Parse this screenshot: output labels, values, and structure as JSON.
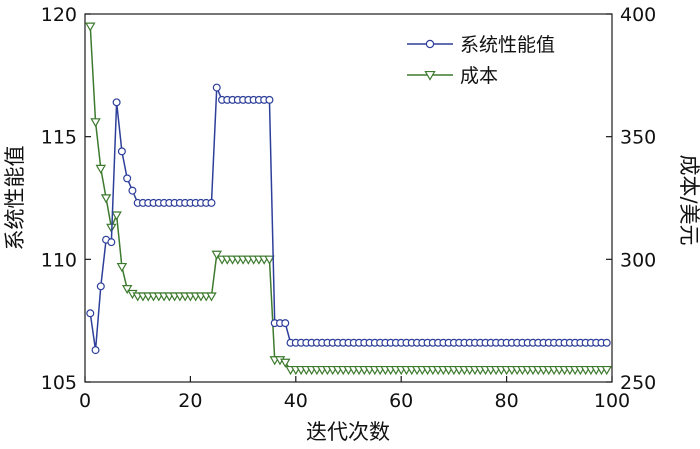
{
  "chart_data": {
    "type": "line",
    "xlabel": "迭代次数",
    "ylabel_left": "系统性能值",
    "ylabel_right": "成本/美元",
    "xlim": [
      0,
      100
    ],
    "ylim_left": [
      105,
      120
    ],
    "ylim_right": [
      250,
      400
    ],
    "x_ticks": [
      "0",
      "20",
      "40",
      "60",
      "80",
      "100"
    ],
    "y_ticks_left": [
      "105",
      "110",
      "115",
      "120"
    ],
    "y_ticks_right": [
      "250",
      "300",
      "350",
      "400"
    ],
    "grid": false,
    "legend_position": "top-right",
    "colors": {
      "performance": "#2e3f9a",
      "cost": "#3d7a2e"
    },
    "series": [
      {
        "name": "系统性能值",
        "axis": "left",
        "marker": "circle",
        "x": [
          1,
          2,
          3,
          4,
          5,
          6,
          7,
          8,
          9,
          10,
          11,
          12,
          13,
          14,
          15,
          16,
          17,
          18,
          19,
          20,
          21,
          22,
          23,
          24,
          25,
          26,
          27,
          28,
          29,
          30,
          31,
          32,
          33,
          34,
          35,
          36,
          37,
          38,
          39,
          40,
          41,
          42,
          43,
          44,
          45,
          46,
          47,
          48,
          49,
          50,
          51,
          52,
          53,
          54,
          55,
          56,
          57,
          58,
          59,
          60,
          61,
          62,
          63,
          64,
          65,
          66,
          67,
          68,
          69,
          70,
          71,
          72,
          73,
          74,
          75,
          76,
          77,
          78,
          79,
          80,
          81,
          82,
          83,
          84,
          85,
          86,
          87,
          88,
          89,
          90,
          91,
          92,
          93,
          94,
          95,
          96,
          97,
          98,
          99
        ],
        "values": [
          107.8,
          106.3,
          108.9,
          110.8,
          110.7,
          116.4,
          114.4,
          113.3,
          112.8,
          112.3,
          112.3,
          112.3,
          112.3,
          112.3,
          112.3,
          112.3,
          112.3,
          112.3,
          112.3,
          112.3,
          112.3,
          112.3,
          112.3,
          112.3,
          117.0,
          116.5,
          116.5,
          116.5,
          116.5,
          116.5,
          116.5,
          116.5,
          116.5,
          116.5,
          116.5,
          107.4,
          107.4,
          107.4,
          106.6,
          106.6,
          106.6,
          106.6,
          106.6,
          106.6,
          106.6,
          106.6,
          106.6,
          106.6,
          106.6,
          106.6,
          106.6,
          106.6,
          106.6,
          106.6,
          106.6,
          106.6,
          106.6,
          106.6,
          106.6,
          106.6,
          106.6,
          106.6,
          106.6,
          106.6,
          106.6,
          106.6,
          106.6,
          106.6,
          106.6,
          106.6,
          106.6,
          106.6,
          106.6,
          106.6,
          106.6,
          106.6,
          106.6,
          106.6,
          106.6,
          106.6,
          106.6,
          106.6,
          106.6,
          106.6,
          106.6,
          106.6,
          106.6,
          106.6,
          106.6,
          106.6,
          106.6,
          106.6,
          106.6,
          106.6,
          106.6,
          106.6,
          106.6,
          106.6,
          106.6
        ]
      },
      {
        "name": "成本",
        "axis": "right",
        "marker": "triangle-down",
        "x": [
          1,
          2,
          3,
          4,
          5,
          6,
          7,
          8,
          9,
          10,
          11,
          12,
          13,
          14,
          15,
          16,
          17,
          18,
          19,
          20,
          21,
          22,
          23,
          24,
          25,
          26,
          27,
          28,
          29,
          30,
          31,
          32,
          33,
          34,
          35,
          36,
          37,
          38,
          39,
          40,
          41,
          42,
          43,
          44,
          45,
          46,
          47,
          48,
          49,
          50,
          51,
          52,
          53,
          54,
          55,
          56,
          57,
          58,
          59,
          60,
          61,
          62,
          63,
          64,
          65,
          66,
          67,
          68,
          69,
          70,
          71,
          72,
          73,
          74,
          75,
          76,
          77,
          78,
          79,
          80,
          81,
          82,
          83,
          84,
          85,
          86,
          87,
          88,
          89,
          90,
          91,
          92,
          93,
          94,
          95,
          96,
          97,
          98,
          99
        ],
        "values": [
          395,
          356,
          337,
          325,
          313,
          318,
          297,
          288,
          286,
          285,
          285,
          285,
          285,
          285,
          285,
          285,
          285,
          285,
          285,
          285,
          285,
          285,
          285,
          285,
          302,
          300,
          300,
          300,
          300,
          300,
          300,
          300,
          300,
          300,
          300,
          259,
          259,
          258,
          255,
          255,
          255,
          255,
          255,
          255,
          255,
          255,
          255,
          255,
          255,
          255,
          255,
          255,
          255,
          255,
          255,
          255,
          255,
          255,
          255,
          255,
          255,
          255,
          255,
          255,
          255,
          255,
          255,
          255,
          255,
          255,
          255,
          255,
          255,
          255,
          255,
          255,
          255,
          255,
          255,
          255,
          255,
          255,
          255,
          255,
          255,
          255,
          255,
          255,
          255,
          255,
          255,
          255,
          255,
          255,
          255,
          255,
          255,
          255,
          255
        ]
      }
    ]
  }
}
